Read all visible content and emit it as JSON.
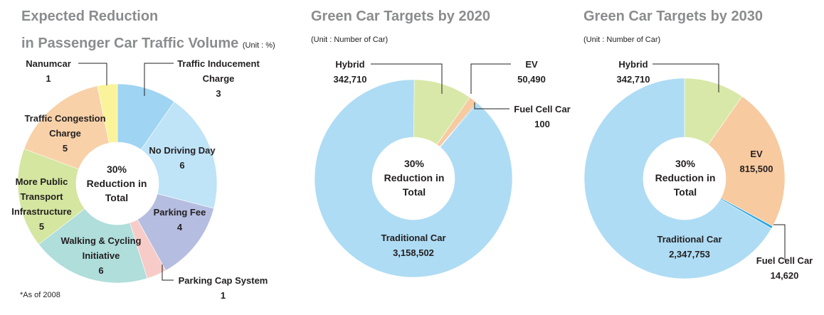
{
  "chart_data": [
    {
      "type": "donut",
      "title": "Expected Reduction",
      "title_line2": "in Passenger Car Traffic Volume",
      "unit": "(Unit : %)",
      "center_text": [
        "30%",
        "Reduction in",
        "Total"
      ],
      "note": "*As of 2008",
      "series": [
        {
          "name": "Traffic Inducement Charge",
          "label_lines": [
            "Traffic Inducement",
            "Charge"
          ],
          "value": 3,
          "display": "3",
          "color": "#9fd4f2"
        },
        {
          "name": "No Driving Day",
          "label_lines": [
            "No Driving Day"
          ],
          "value": 6,
          "display": "6",
          "color": "#bfe3f7"
        },
        {
          "name": "Parking Fee",
          "label_lines": [
            "Parking Fee"
          ],
          "value": 4,
          "display": "4",
          "color": "#b5bde0"
        },
        {
          "name": "Parking Cap System",
          "label_lines": [
            "Parking Cap System"
          ],
          "value": 1,
          "display": "1",
          "color": "#f7ccc8"
        },
        {
          "name": "Walking & Cycling Initiative",
          "label_lines": [
            "Walking & Cycling",
            "Initiative"
          ],
          "value": 6,
          "display": "6",
          "color": "#afdedb"
        },
        {
          "name": "More Public Transport Infrastructure",
          "label_lines": [
            "More Public",
            "Transport",
            "Infrastructure"
          ],
          "value": 5,
          "display": "5",
          "color": "#d4e6a0"
        },
        {
          "name": "Traffic Congestion Charge",
          "label_lines": [
            "Traffic Congestion",
            "Charge"
          ],
          "value": 5,
          "display": "5",
          "color": "#f8d1a8"
        },
        {
          "name": "Nanumcar",
          "label_lines": [
            "Nanumcar"
          ],
          "value": 1,
          "display": "1",
          "color": "#fbf39a"
        }
      ]
    },
    {
      "type": "donut",
      "title": "Green Car Targets by 2020",
      "unit": "(Unit : Number of Car)",
      "center_text": [
        "30%",
        "Reduction in",
        "Total"
      ],
      "series": [
        {
          "name": "Hybrid",
          "label_lines": [
            "Hybrid"
          ],
          "value": 342710,
          "display": "342,710",
          "color": "#d8e8a8"
        },
        {
          "name": "EV",
          "label_lines": [
            "EV"
          ],
          "value": 50490,
          "display": "50,490",
          "color": "#f7caa0"
        },
        {
          "name": "Fuel Cell Car",
          "label_lines": [
            "Fuel Cell Car"
          ],
          "value": 100,
          "display": "100",
          "color": "#2aa8e0"
        },
        {
          "name": "Traditional Car",
          "label_lines": [
            "Traditional Car"
          ],
          "value": 3158502,
          "display": "3,158,502",
          "color": "#aedcf4"
        }
      ]
    },
    {
      "type": "donut",
      "title": "Green Car Targets by 2030",
      "unit": "(Unit : Number of Car)",
      "center_text": [
        "30%",
        "Reduction in",
        "Total"
      ],
      "series": [
        {
          "name": "Hybrid",
          "label_lines": [
            "Hybrid"
          ],
          "value": 342710,
          "display": "342,710",
          "color": "#d8e8a8"
        },
        {
          "name": "EV",
          "label_lines": [
            "EV"
          ],
          "value": 815500,
          "display": "815,500",
          "color": "#f7caa0"
        },
        {
          "name": "Fuel Cell Car",
          "label_lines": [
            "Fuel Cell Car"
          ],
          "value": 14620,
          "display": "14,620",
          "color": "#2aa8e0"
        },
        {
          "name": "Traditional Car",
          "label_lines": [
            "Traditional Car"
          ],
          "value": 2347753,
          "display": "2,347,753",
          "color": "#aedcf4"
        }
      ]
    }
  ]
}
